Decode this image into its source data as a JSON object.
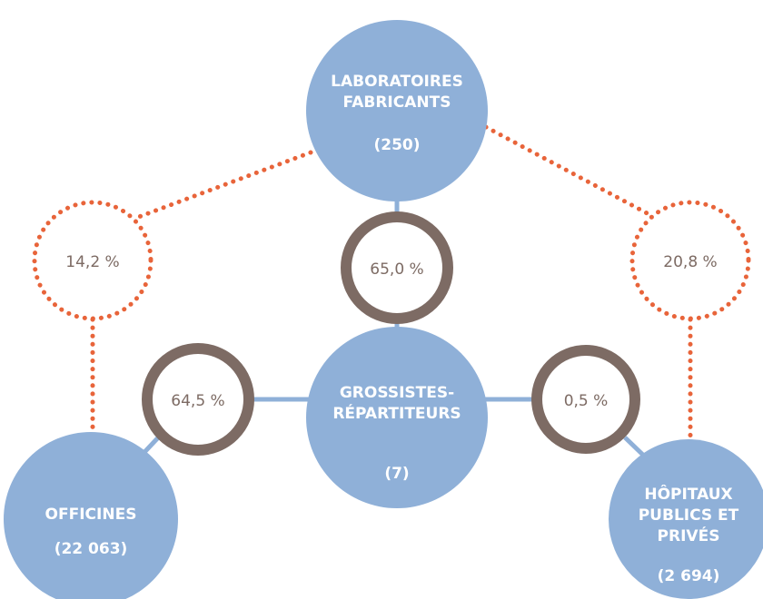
{
  "nodes": [
    {
      "lines": [
        "LABORATOIRES",
        "FABRICANTS"
      ],
      "count": "(250)"
    },
    {
      "lines": [
        "GROSSISTES-",
        "RÉPARTITEURS"
      ],
      "count": "(7)"
    },
    {
      "lines": [
        "OFFICINES"
      ],
      "count": "(22 063)"
    },
    {
      "lines": [
        "HÔPITAUX",
        "PUBLICS ET",
        "PRIVÉS"
      ],
      "count": "(2 694)"
    }
  ],
  "flows": [
    {
      "label": "65,0 %"
    },
    {
      "label": "64,5 %"
    },
    {
      "label": "0,5 %"
    },
    {
      "label": "14,2 %"
    },
    {
      "label": "20,8 %"
    }
  ]
}
